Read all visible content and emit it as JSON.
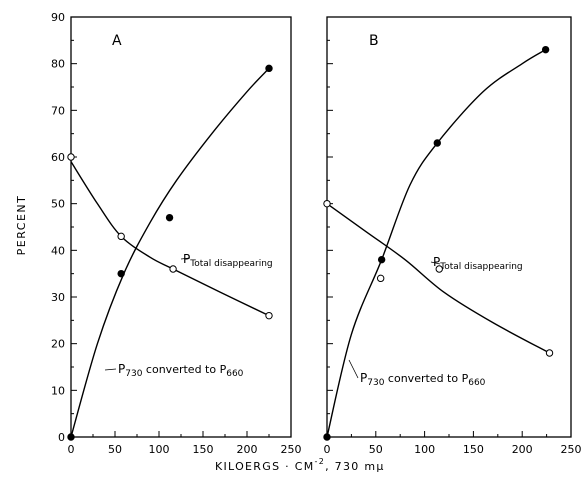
{
  "chart_data": [
    {
      "panel": "A",
      "type": "line",
      "xlim": [
        0,
        250
      ],
      "ylim": [
        0,
        90
      ],
      "xticks": [
        "0",
        "50",
        "100",
        "150",
        "200",
        "250"
      ],
      "yticks": [
        "0",
        "10",
        "20",
        "30",
        "40",
        "50",
        "60",
        "70",
        "80",
        "90"
      ],
      "series": [
        {
          "name_main": "P",
          "name_sub": "730",
          "name_rest": " converted to P",
          "name_sub2": "660",
          "marker": "filled",
          "points": [
            [
              0,
              0
            ],
            [
              57,
              35
            ],
            [
              112,
              47
            ],
            [
              225,
              79
            ]
          ],
          "curve": [
            [
              0,
              0
            ],
            [
              30,
              20
            ],
            [
              60,
              35
            ],
            [
              90,
              46
            ],
            [
              120,
              55
            ],
            [
              160,
              65
            ],
            [
              200,
              74
            ],
            [
              225,
              79
            ]
          ]
        },
        {
          "name_main": "P",
          "name_sub": "Total disappearing",
          "marker": "open",
          "points": [
            [
              0,
              60
            ],
            [
              57,
              43
            ],
            [
              116,
              36
            ],
            [
              225,
              26
            ]
          ],
          "curve": [
            [
              0,
              59
            ],
            [
              30,
              50
            ],
            [
              57,
              43
            ],
            [
              90,
              38.5
            ],
            [
              116,
              36
            ],
            [
              170,
              31
            ],
            [
              225,
              26
            ]
          ]
        }
      ]
    },
    {
      "panel": "B",
      "type": "line",
      "xlim": [
        0,
        250
      ],
      "ylim": [
        0,
        90
      ],
      "xticks": [
        "0",
        "50",
        "100",
        "150",
        "200",
        "250"
      ],
      "series": [
        {
          "name_main": "P",
          "name_sub": "730",
          "name_rest": " converted to P",
          "name_sub2": "660",
          "marker": "filled",
          "points": [
            [
              0,
              0
            ],
            [
              56,
              38
            ],
            [
              113,
              63
            ],
            [
              224,
              83
            ]
          ],
          "curve": [
            [
              0,
              0
            ],
            [
              25,
              22
            ],
            [
              56,
              38
            ],
            [
              85,
              54
            ],
            [
              113,
              63
            ],
            [
              160,
              74
            ],
            [
              200,
              80
            ],
            [
              224,
              83
            ]
          ]
        },
        {
          "name_main": "P",
          "name_sub": "Total disappearing",
          "marker": "open",
          "points": [
            [
              0,
              50
            ],
            [
              55,
              34
            ],
            [
              115,
              36
            ],
            [
              228,
              18
            ]
          ],
          "curve": [
            [
              0,
              50
            ],
            [
              40,
              44
            ],
            [
              80,
              38
            ],
            [
              120,
              31
            ],
            [
              170,
              24.5
            ],
            [
              228,
              18
            ]
          ]
        }
      ]
    }
  ],
  "ylabel": "PERCENT",
  "xlabel": "KILOERGS · CM",
  "xlabel_sup": "-2",
  "xlabel_rest": ",  730 mμ"
}
